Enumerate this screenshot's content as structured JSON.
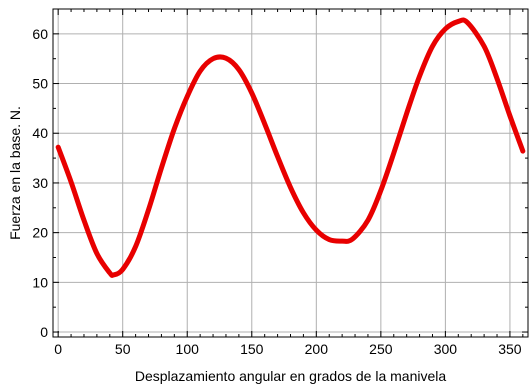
{
  "chart_data": {
    "type": "line",
    "xlabel": "Desplazamiento angular  en grados de la manivela",
    "ylabel": "Fuerza en la base. N.",
    "xlim": [
      -4,
      364
    ],
    "ylim": [
      -1,
      65
    ],
    "grid": true,
    "legend": "none",
    "x_ticks": [
      0,
      50,
      100,
      150,
      200,
      250,
      300,
      350
    ],
    "y_ticks": [
      0,
      10,
      20,
      30,
      40,
      50,
      60
    ],
    "x_minor_step": 10,
    "y_minor_step": 5,
    "series": [
      {
        "color": "#e80000",
        "x": [
          0,
          10,
          20,
          30,
          40,
          43,
          50,
          60,
          70,
          80,
          90,
          100,
          110,
          120,
          130,
          140,
          150,
          160,
          170,
          180,
          190,
          200,
          210,
          220,
          228,
          240,
          250,
          260,
          270,
          280,
          290,
          300,
          310,
          317,
          330,
          340,
          350,
          360
        ],
        "y": [
          37.2,
          30.2,
          22.5,
          15.8,
          11.9,
          11.5,
          12.6,
          17.2,
          24.6,
          33.0,
          40.9,
          47.4,
          52.5,
          55.0,
          55.1,
          52.8,
          48.1,
          41.9,
          35.3,
          29.1,
          24.0,
          20.5,
          18.6,
          18.3,
          18.7,
          22.5,
          28.5,
          36.0,
          44.0,
          51.5,
          57.5,
          61.0,
          62.5,
          62.3,
          57.5,
          51.0,
          43.5,
          36.4
        ]
      }
    ]
  }
}
